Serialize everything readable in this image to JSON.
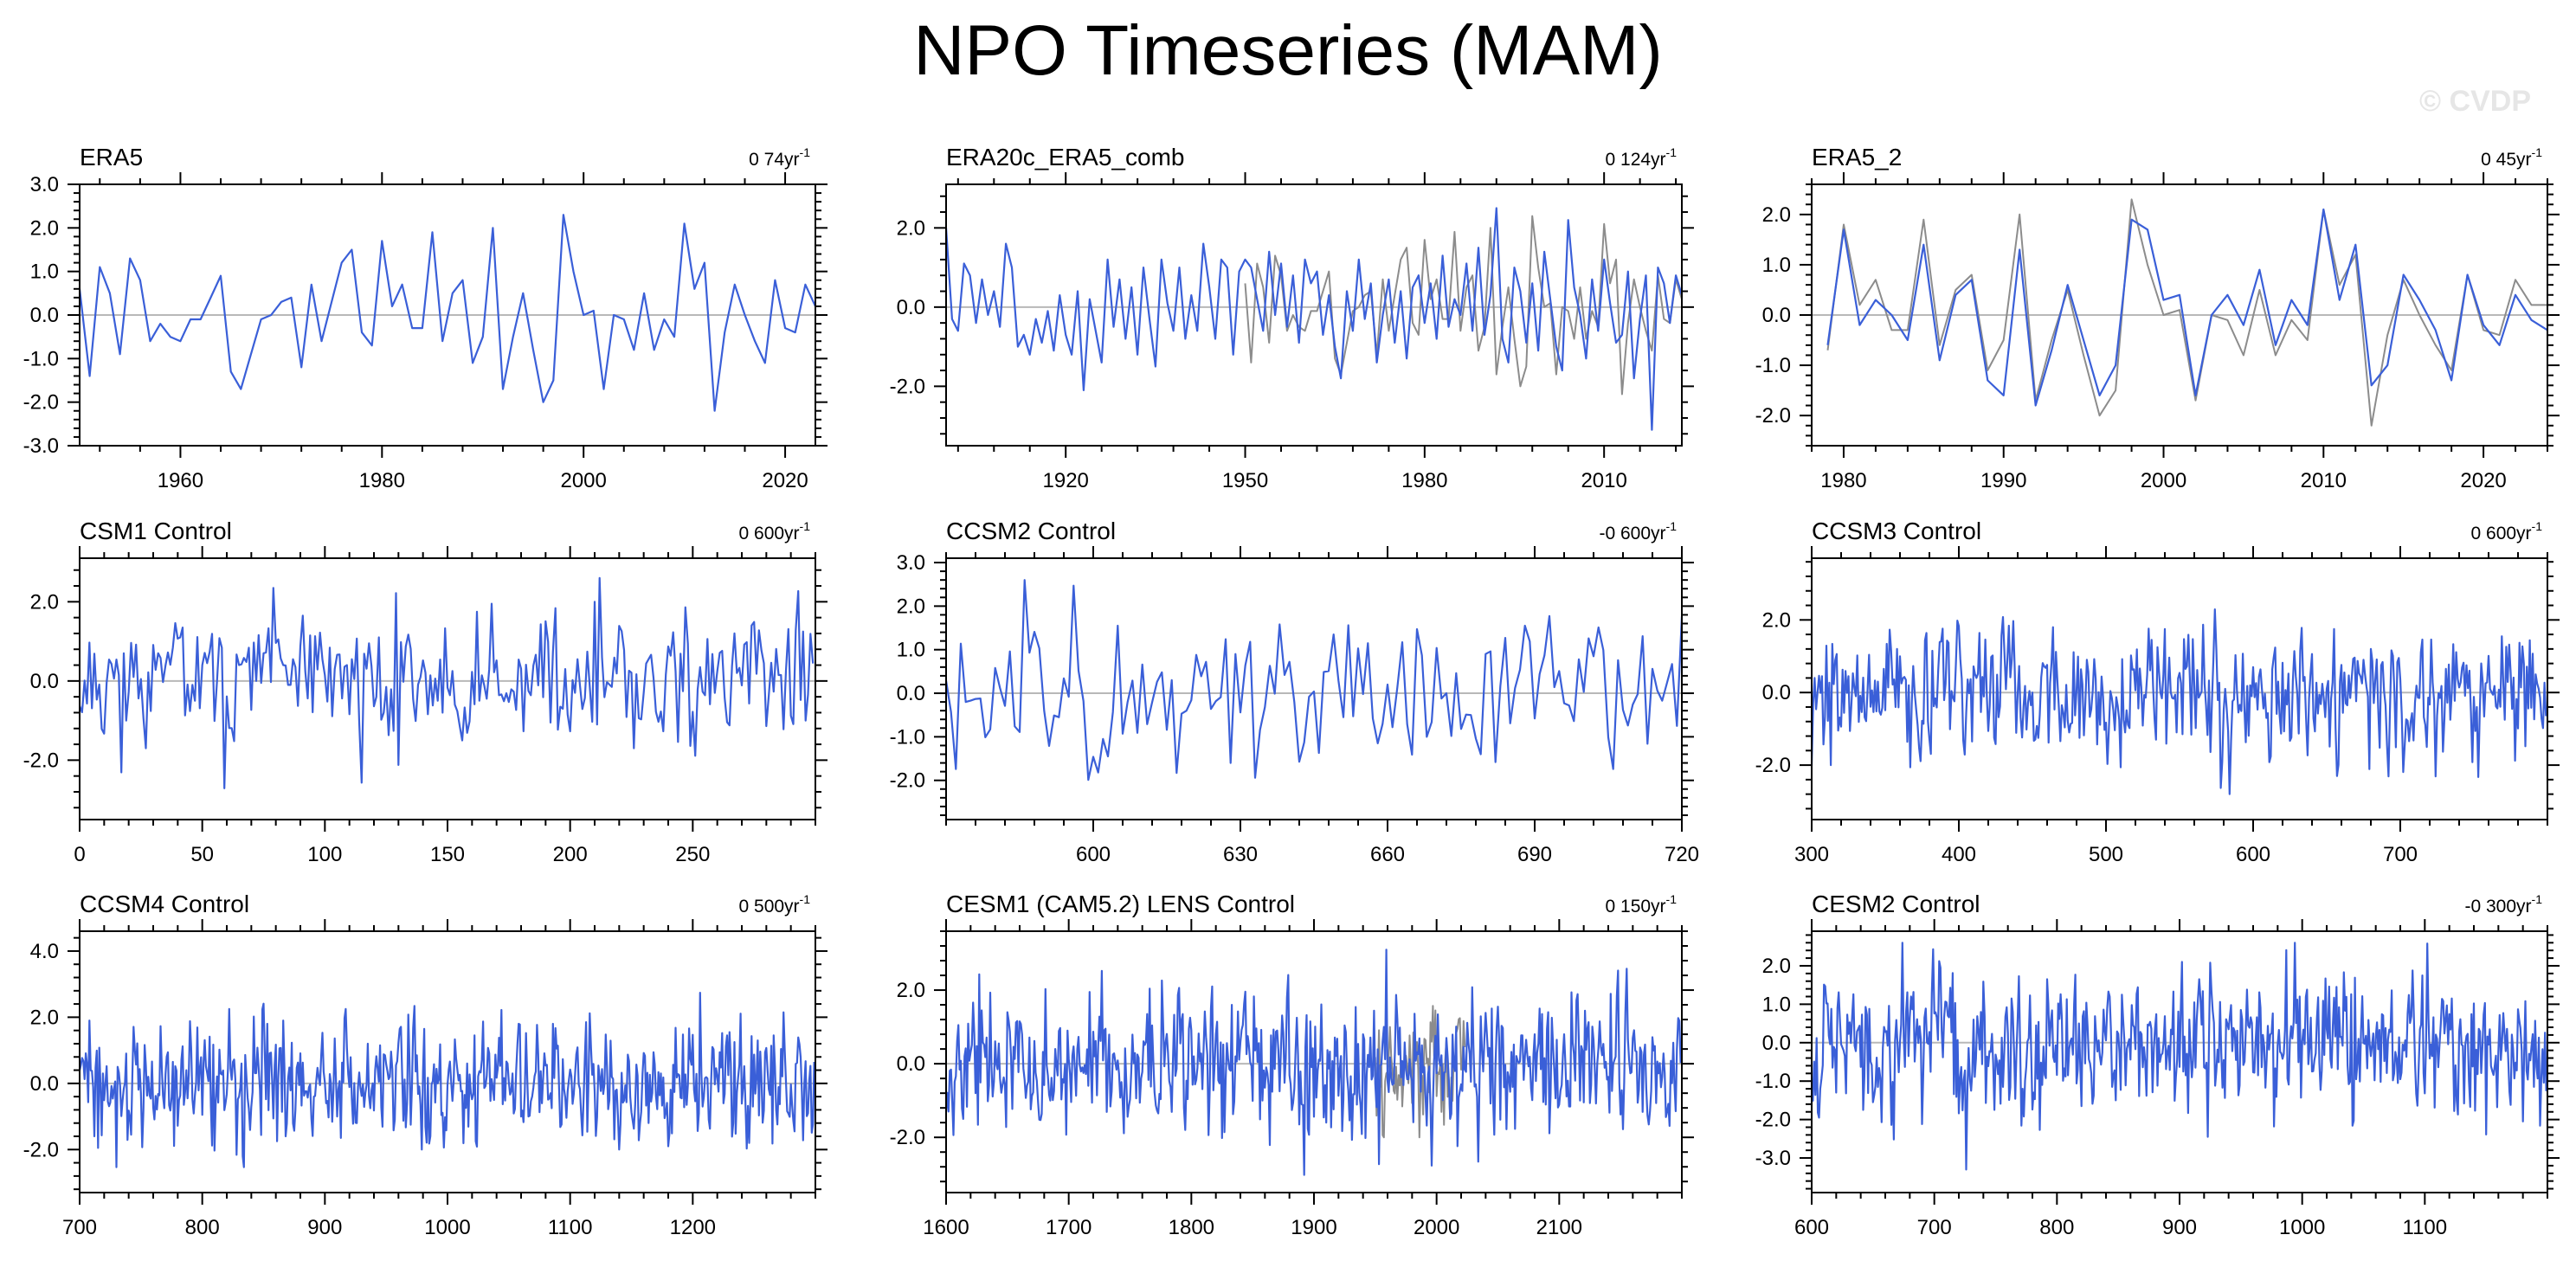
{
  "title": "NPO Timeseries (MAM)",
  "watermark": "© CVDP",
  "colors": {
    "model": "#3a5fd8",
    "observation": "#8c8c8c",
    "zero_line": "#b8b8b8",
    "axis": "#000000"
  },
  "chart_data": [
    {
      "type": "line",
      "title": "ERA5",
      "trend": "0 74yr",
      "trend_exp": "-1",
      "xlim": [
        1950,
        2023
      ],
      "ylim": [
        -3,
        3
      ],
      "xticks": [
        1960,
        1980,
        2000,
        2020
      ],
      "xtick_labels": [
        "1960",
        "1980",
        "2000",
        "2020"
      ],
      "yticks": [
        -3,
        -2,
        -1,
        0,
        1,
        2,
        3
      ],
      "ytick_labels": [
        "-3.0",
        "-2.0",
        "-1.0",
        "0.0",
        "1.0",
        "2.0",
        "3.0"
      ],
      "series": [
        {
          "name": "ERA5",
          "style": "model",
          "x0": 1950,
          "dx": 1,
          "values": [
            0.6,
            -1.4,
            1.1,
            0.5,
            -0.9,
            1.3,
            0.8,
            -0.6,
            -0.2,
            -0.5,
            -0.6,
            -0.1,
            -0.1,
            0.4,
            0.9,
            -1.3,
            -1.7,
            -0.9,
            -0.1,
            0.0,
            0.3,
            0.4,
            -1.2,
            0.7,
            -0.6,
            0.3,
            1.2,
            1.5,
            -0.4,
            -0.7,
            1.7,
            0.2,
            0.7,
            -0.3,
            -0.3,
            1.9,
            -0.6,
            0.5,
            0.8,
            -1.1,
            -0.5,
            2.0,
            -1.7,
            -0.5,
            0.5,
            -0.8,
            -2.0,
            -1.5,
            2.3,
            1.0,
            0.0,
            0.1,
            -1.7,
            0.0,
            -0.1,
            -0.8,
            0.5,
            -0.8,
            -0.1,
            -0.5,
            2.1,
            0.6,
            1.2,
            -2.2,
            -0.4,
            0.7,
            0.0,
            -0.6,
            -1.1,
            0.8,
            -0.3,
            -0.4,
            0.7,
            0.2
          ]
        }
      ]
    },
    {
      "type": "line",
      "title": "ERA20c_ERA5_comb",
      "trend": "0 124yr",
      "trend_exp": "-1",
      "xlim": [
        1900,
        2023
      ],
      "ylim": [
        -3.5,
        3.1
      ],
      "xticks": [
        1920,
        1950,
        1980,
        2010
      ],
      "xtick_labels": [
        "1920",
        "1950",
        "1980",
        "2010"
      ],
      "yticks": [
        -2,
        0,
        2
      ],
      "ytick_labels": [
        "-2.0",
        "0.0",
        "2.0"
      ],
      "series": [
        {
          "name": "ERA5",
          "style": "observation",
          "x0": 1950,
          "dx": 1,
          "values": [
            0.6,
            -1.4,
            1.1,
            0.5,
            -0.9,
            1.3,
            0.8,
            -0.6,
            -0.2,
            -0.5,
            -0.6,
            -0.1,
            -0.1,
            0.4,
            0.9,
            -1.3,
            -1.7,
            -0.9,
            -0.1,
            0.0,
            0.3,
            0.4,
            -1.2,
            0.7,
            -0.6,
            0.3,
            1.2,
            1.5,
            -0.4,
            -0.7,
            1.7,
            0.2,
            0.7,
            -0.3,
            -0.3,
            1.9,
            -0.6,
            0.5,
            0.8,
            -1.1,
            -0.5,
            2.0,
            -1.7,
            -0.5,
            0.5,
            -0.8,
            -2.0,
            -1.5,
            2.3,
            1.0,
            0.0,
            0.1,
            -1.7,
            0.0,
            -0.1,
            -0.8,
            0.5,
            -0.8,
            -0.1,
            -0.5,
            2.1,
            0.6,
            1.2,
            -2.2,
            -0.4,
            0.7,
            0.0,
            -0.6,
            -1.1,
            0.8,
            -0.3,
            -0.4,
            0.7,
            0.2
          ]
        },
        {
          "name": "ERA20c_ERA5_comb",
          "style": "model",
          "x0": 1900,
          "dx": 1,
          "values": [
            2.0,
            -0.3,
            -0.6,
            1.1,
            0.8,
            -0.4,
            0.7,
            -0.2,
            0.4,
            -0.5,
            1.6,
            1.0,
            -1.0,
            -0.7,
            -1.2,
            -0.3,
            -0.9,
            -0.1,
            -1.1,
            0.3,
            -0.7,
            -1.2,
            0.4,
            -2.1,
            0.2,
            -0.6,
            -1.4,
            1.2,
            -0.5,
            0.7,
            -0.8,
            0.5,
            -1.2,
            1.0,
            -0.3,
            -1.5,
            1.2,
            0.1,
            -0.6,
            1.0,
            -0.8,
            0.3,
            -0.6,
            1.6,
            0.5,
            -0.8,
            1.2,
            1.0,
            -1.2,
            0.9,
            1.2,
            1.0,
            0.2,
            -0.6,
            1.4,
            -0.2,
            1.1,
            -0.5,
            0.8,
            -0.9,
            1.2,
            0.6,
            0.9,
            -0.7,
            0.3,
            -1.0,
            -1.8,
            0.4,
            -0.6,
            1.2,
            -0.3,
            0.6,
            -1.4,
            -0.2,
            0.7,
            -0.9,
            0.4,
            -1.3,
            0.5,
            0.8,
            -0.4,
            0.6,
            -0.8,
            1.3,
            -0.5,
            0.2,
            -0.2,
            1.1,
            -0.6,
            1.5,
            -0.7,
            0.3,
            2.5,
            -0.8,
            -1.4,
            1.0,
            0.4,
            -0.9,
            0.6,
            -1.1,
            1.4,
            0.2,
            -1.0,
            -1.6,
            2.2,
            0.5,
            -0.2,
            -1.3,
            0.7,
            -0.6,
            1.2,
            0.1,
            -0.9,
            -0.7,
            0.9,
            -1.8,
            -0.3,
            0.8,
            -3.1,
            1.0,
            0.6,
            -0.4,
            0.8,
            0.3
          ]
        }
      ]
    },
    {
      "type": "line",
      "title": "ERA5_2",
      "trend": "0 45yr",
      "trend_exp": "-1",
      "xlim": [
        1978,
        2024
      ],
      "ylim": [
        -2.6,
        2.6
      ],
      "xticks": [
        1980,
        1990,
        2000,
        2010,
        2020
      ],
      "xtick_labels": [
        "1980",
        "1990",
        "2000",
        "2010",
        "2020"
      ],
      "yticks": [
        -2,
        -1,
        0,
        1,
        2
      ],
      "ytick_labels": [
        "-2.0",
        "-1.0",
        "0.0",
        "1.0",
        "2.0"
      ],
      "series": [
        {
          "name": "ERA5",
          "style": "observation",
          "x0": 1979,
          "dx": 1,
          "values": [
            -0.7,
            1.8,
            0.2,
            0.7,
            -0.3,
            -0.3,
            1.9,
            -0.6,
            0.5,
            0.8,
            -1.1,
            -0.5,
            2.0,
            -1.7,
            -0.5,
            0.5,
            -0.8,
            -2.0,
            -1.5,
            2.3,
            1.0,
            0.0,
            0.1,
            -1.7,
            0.0,
            -0.1,
            -0.8,
            0.5,
            -0.8,
            -0.1,
            -0.5,
            2.1,
            0.6,
            1.2,
            -2.2,
            -0.4,
            0.7,
            0.0,
            -0.6,
            -1.1,
            0.8,
            -0.3,
            -0.4,
            0.7,
            0.2,
            0.2
          ]
        },
        {
          "name": "ERA5_2",
          "style": "model",
          "x0": 1979,
          "dx": 1,
          "values": [
            -0.6,
            1.7,
            -0.2,
            0.3,
            0.0,
            -0.5,
            1.4,
            -0.9,
            0.4,
            0.7,
            -1.3,
            -1.6,
            1.3,
            -1.8,
            -0.7,
            0.6,
            -0.5,
            -1.6,
            -1.0,
            1.9,
            1.7,
            0.3,
            0.4,
            -1.6,
            0.0,
            0.4,
            -0.2,
            0.9,
            -0.6,
            0.3,
            -0.2,
            2.1,
            0.3,
            1.4,
            -1.4,
            -1.0,
            0.8,
            0.3,
            -0.3,
            -1.3,
            0.8,
            -0.2,
            -0.6,
            0.4,
            -0.1,
            -0.3
          ]
        }
      ]
    },
    {
      "type": "line",
      "title": "CSM1 Control",
      "trend": "0 600yr",
      "trend_exp": "-1",
      "xlim": [
        0,
        300
      ],
      "ylim": [
        -3.5,
        3.1
      ],
      "xticks": [
        0,
        50,
        100,
        150,
        200,
        250
      ],
      "xtick_labels": [
        "0",
        "50",
        "100",
        "150",
        "200",
        "250"
      ],
      "yticks": [
        -2,
        0,
        2
      ],
      "ytick_labels": [
        "-2.0",
        "0.0",
        "2.0"
      ],
      "series": [
        {
          "name": "CSM1 Control",
          "style": "model",
          "x0": 0,
          "dx": 1,
          "n": 300,
          "seed": 11,
          "amp": 0.9,
          "clip": [
            -3.0,
            2.6
          ]
        }
      ]
    },
    {
      "type": "line",
      "title": "CCSM2 Control",
      "trend": "-0 600yr",
      "trend_exp": "-1",
      "xlim": [
        570,
        720
      ],
      "ylim": [
        -2.9,
        3.1
      ],
      "xticks": [
        600,
        630,
        660,
        690,
        720
      ],
      "xtick_labels": [
        "600",
        "630",
        "660",
        "690",
        "720"
      ],
      "yticks": [
        -2,
        -1,
        0,
        1,
        2,
        3
      ],
      "ytick_labels": [
        "-2.0",
        "-1.0",
        "0.0",
        "1.0",
        "2.0",
        "3.0"
      ],
      "series": [
        {
          "name": "CCSM2 Control",
          "style": "model",
          "x0": 570,
          "dx": 1,
          "n": 151,
          "seed": 23,
          "amp": 0.9,
          "clip": [
            -2.3,
            2.6
          ]
        }
      ]
    },
    {
      "type": "line",
      "title": "CCSM3 Control",
      "trend": "0 600yr",
      "trend_exp": "-1",
      "xlim": [
        300,
        800
      ],
      "ylim": [
        -3.5,
        3.7
      ],
      "xticks": [
        300,
        400,
        500,
        600,
        700
      ],
      "xtick_labels": [
        "300",
        "400",
        "500",
        "600",
        "700"
      ],
      "yticks": [
        -2,
        0,
        2
      ],
      "ytick_labels": [
        "-2.0",
        "0.0",
        "2.0"
      ],
      "series": [
        {
          "name": "CCSM3 Control",
          "style": "model",
          "x0": 300,
          "dx": 1,
          "n": 500,
          "seed": 37,
          "amp": 0.9,
          "clip": [
            -3.1,
            3.5
          ]
        }
      ]
    },
    {
      "type": "line",
      "title": "CCSM4 Control",
      "trend": "0 500yr",
      "trend_exp": "-1",
      "xlim": [
        700,
        1300
      ],
      "ylim": [
        -3.3,
        4.6
      ],
      "xticks": [
        700,
        800,
        900,
        1000,
        1100,
        1200
      ],
      "xtick_labels": [
        "700",
        "800",
        "900",
        "1000",
        "1100",
        "1200"
      ],
      "yticks": [
        -2,
        0,
        2,
        4
      ],
      "ytick_labels": [
        "-2.0",
        "0.0",
        "2.0",
        "4.0"
      ],
      "series": [
        {
          "name": "CCSM4 Control",
          "style": "model",
          "x0": 700,
          "dx": 1,
          "n": 600,
          "seed": 41,
          "amp": 0.9,
          "clip": [
            -2.9,
            4.0
          ]
        }
      ]
    },
    {
      "type": "line",
      "title": "CESM1 (CAM5.2) LENS Control",
      "trend": "0 150yr",
      "trend_exp": "-1",
      "xlim": [
        1600,
        2200
      ],
      "ylim": [
        -3.5,
        3.6
      ],
      "xticks": [
        1600,
        1700,
        1800,
        1900,
        2000,
        2100
      ],
      "xtick_labels": [
        "1600",
        "1700",
        "1800",
        "1900",
        "2000",
        "2100"
      ],
      "yticks": [
        -2,
        0,
        2
      ],
      "ytick_labels": [
        "-2.0",
        "0.0",
        "2.0"
      ],
      "series": [
        {
          "name": "ERA20c_ERA5_comb",
          "style": "observation",
          "x0": 1950,
          "dx": 1,
          "n": 74,
          "seed": 5,
          "amp": 0.9,
          "clip": [
            -2.0,
            2.2
          ]
        },
        {
          "name": "CESM1 (CAM5.2) LENS Control",
          "style": "model",
          "x0": 1600,
          "dx": 1,
          "n": 600,
          "seed": 53,
          "amp": 0.95,
          "clip": [
            -3.2,
            3.1
          ]
        }
      ]
    },
    {
      "type": "line",
      "title": "CESM2 Control",
      "trend": "-0 300yr",
      "trend_exp": "-1",
      "xlim": [
        600,
        1200
      ],
      "ylim": [
        -3.9,
        2.9
      ],
      "xticks": [
        600,
        700,
        800,
        900,
        1000,
        1100
      ],
      "xtick_labels": [
        "600",
        "700",
        "800",
        "900",
        "1000",
        "1100"
      ],
      "yticks": [
        -3,
        -2,
        -1,
        0,
        1,
        2
      ],
      "ytick_labels": [
        "-3.0",
        "-2.0",
        "-1.0",
        "0.0",
        "1.0",
        "2.0"
      ],
      "series": [
        {
          "name": "CESM2 Control",
          "style": "model",
          "x0": 600,
          "dx": 1,
          "n": 600,
          "seed": 67,
          "amp": 0.9,
          "clip": [
            -3.3,
            2.6
          ]
        }
      ]
    }
  ]
}
